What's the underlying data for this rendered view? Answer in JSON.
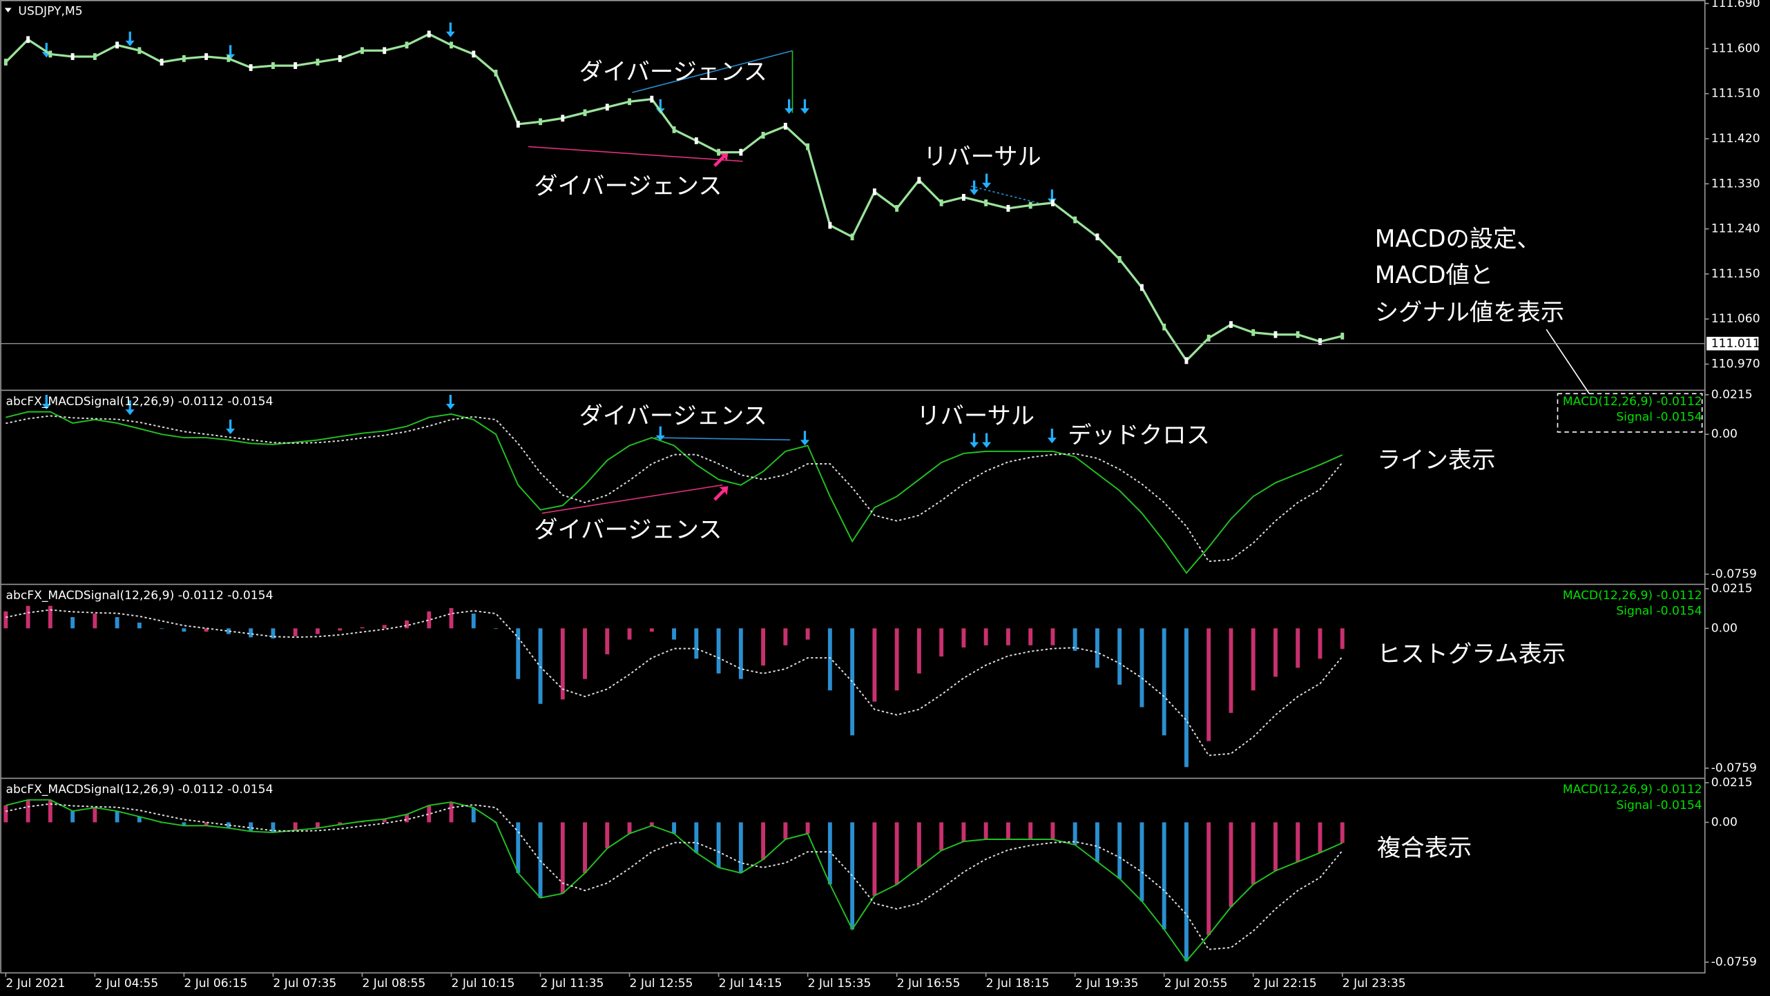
{
  "chart_data": [
    {
      "type": "line",
      "title": "USDJPY,M5",
      "color": "#9be39b",
      "x": [
        0,
        4,
        8,
        12,
        16,
        20,
        24,
        28,
        32,
        36,
        40,
        44,
        48,
        52,
        56,
        60,
        64,
        68,
        72,
        76,
        80,
        84,
        88,
        92,
        96,
        100,
        104,
        108,
        112,
        116,
        120,
        124,
        128,
        132,
        136,
        140,
        144,
        148,
        152,
        156,
        160,
        164,
        168,
        172,
        176,
        180,
        184,
        188,
        192,
        196,
        200,
        204,
        208,
        212,
        216,
        220,
        224,
        228,
        232,
        236,
        240
      ],
      "values": [
        111.573,
        111.618,
        111.589,
        111.584,
        111.584,
        111.607,
        111.596,
        111.573,
        111.58,
        111.584,
        111.58,
        111.562,
        111.566,
        111.566,
        111.573,
        111.58,
        111.596,
        111.596,
        111.607,
        111.629,
        111.607,
        111.589,
        111.551,
        111.449,
        111.454,
        111.461,
        111.472,
        111.483,
        111.494,
        111.499,
        111.438,
        111.416,
        111.393,
        111.393,
        111.427,
        111.445,
        111.404,
        111.247,
        111.224,
        111.314,
        111.281,
        111.337,
        111.292,
        111.303,
        111.292,
        111.281,
        111.287,
        111.292,
        111.258,
        111.224,
        111.179,
        111.123,
        111.044,
        110.977,
        111.022,
        111.049,
        111.033,
        111.029,
        111.029,
        111.015,
        111.026
      ],
      "xlim": [
        -1,
        305
      ],
      "ylim": [
        110.92,
        111.697
      ],
      "yticks": [
        {
          "value": 111.69,
          "label": "111.690"
        },
        {
          "value": 111.6,
          "label": "111.600"
        },
        {
          "value": 111.51,
          "label": "111.510"
        },
        {
          "value": 111.42,
          "label": "111.420"
        },
        {
          "value": 111.33,
          "label": "111.330"
        },
        {
          "value": 111.24,
          "label": "111.240"
        },
        {
          "value": 111.15,
          "label": "111.150"
        },
        {
          "value": 111.06,
          "label": "111.060"
        },
        {
          "value": 110.97,
          "label": "110.970"
        }
      ],
      "current_price": 111.011,
      "annotations": [
        "ダイバージェンス",
        "ダイバージェンス",
        "リバーサル",
        "MACDの設定、",
        "MACD値と",
        "シグナル値を表示"
      ]
    },
    {
      "type": "macd",
      "title": "abcFX_MACDSignal(12,26,9) -0.0112 -0.0154",
      "x": [
        0,
        4,
        8,
        12,
        16,
        20,
        24,
        28,
        32,
        36,
        40,
        44,
        48,
        52,
        56,
        60,
        64,
        68,
        72,
        76,
        80,
        84,
        88,
        92,
        96,
        100,
        104,
        108,
        112,
        116,
        120,
        124,
        128,
        132,
        136,
        140,
        144,
        148,
        152,
        156,
        160,
        164,
        168,
        172,
        176,
        180,
        184,
        188,
        192,
        196,
        200,
        204,
        208,
        212,
        216,
        220,
        224,
        228,
        232,
        236,
        240
      ],
      "series": [
        {
          "name": "MACD(12,26,9) -0.0112",
          "color": "#22c022",
          "legend_color": "#00e000",
          "values": [
            0.0092,
            0.0122,
            0.0122,
            0.0061,
            0.008,
            0.0061,
            0.0031,
            0,
            -0.0018,
            -0.0018,
            -0.0031,
            -0.0049,
            -0.0055,
            -0.0043,
            -0.0031,
            -0.0012,
            0.0006,
            0.0018,
            0.0043,
            0.0092,
            0.011,
            0.008,
            0,
            -0.0275,
            -0.041,
            -0.0386,
            -0.0275,
            -0.0141,
            -0.0061,
            -0.0018,
            -0.0061,
            -0.0165,
            -0.0245,
            -0.0275,
            -0.0202,
            -0.0092,
            -0.0061,
            -0.0337,
            -0.0581,
            -0.0398,
            -0.0337,
            -0.0245,
            -0.0153,
            -0.0104,
            -0.0092,
            -0.0092,
            -0.0092,
            -0.0092,
            -0.0122,
            -0.0214,
            -0.0306,
            -0.0428,
            -0.0581,
            -0.0753,
            -0.0612,
            -0.0459,
            -0.0337,
            -0.0263,
            -0.0214,
            -0.0165,
            -0.0112
          ]
        },
        {
          "name": "Signal -0.0154",
          "color": "#dddddd",
          "legend_color": "#00e000",
          "values": [
            0.006,
            0.0085,
            0.01,
            0.009,
            0.0085,
            0.0082,
            0.0065,
            0.004,
            0.0015,
            0,
            -0.0015,
            -0.003,
            -0.0045,
            -0.0048,
            -0.0045,
            -0.0035,
            -0.002,
            -0.0005,
            0.0015,
            0.0045,
            0.008,
            0.0095,
            0.008,
            -0.005,
            -0.021,
            -0.033,
            -0.037,
            -0.033,
            -0.025,
            -0.016,
            -0.011,
            -0.011,
            -0.016,
            -0.022,
            -0.0245,
            -0.022,
            -0.016,
            -0.016,
            -0.029,
            -0.044,
            -0.047,
            -0.044,
            -0.036,
            -0.027,
            -0.02,
            -0.015,
            -0.0125,
            -0.011,
            -0.0105,
            -0.013,
            -0.019,
            -0.027,
            -0.037,
            -0.05,
            -0.069,
            -0.068,
            -0.059,
            -0.047,
            -0.037,
            -0.03,
            -0.0154
          ]
        }
      ],
      "histogram_colors": {
        "falling": "#2a8fd0",
        "rising": "#c8306e"
      },
      "xlim": [
        -1,
        305
      ],
      "ylim": [
        -0.0808,
        0.0233
      ],
      "yticks": [
        0.0215,
        {
          "value": 0,
          "label": "0.00"
        },
        -0.0759
      ],
      "xticks": [
        {
          "value": 0,
          "label": "2 Jul 2021"
        },
        {
          "value": 16,
          "label": "2 Jul 04:55"
        },
        {
          "value": 32,
          "label": "2 Jul 06:15"
        },
        {
          "value": 48,
          "label": "2 Jul 07:35"
        },
        {
          "value": 64,
          "label": "2 Jul 08:55"
        },
        {
          "value": 80,
          "label": "2 Jul 10:15"
        },
        {
          "value": 96,
          "label": "2 Jul 11:35"
        },
        {
          "value": 112,
          "label": "2 Jul 12:55"
        },
        {
          "value": 128,
          "label": "2 Jul 14:15"
        },
        {
          "value": 144,
          "label": "2 Jul 15:35"
        },
        {
          "value": 160,
          "label": "2 Jul 16:55"
        },
        {
          "value": 176,
          "label": "2 Jul 18:15"
        },
        {
          "value": 192,
          "label": "2 Jul 19:35"
        },
        {
          "value": 208,
          "label": "2 Jul 20:55"
        },
        {
          "value": 224,
          "label": "2 Jul 22:15"
        },
        {
          "value": 240,
          "label": "2 Jul 23:35"
        }
      ],
      "panels": [
        {
          "display": "line",
          "label": "ライン表示"
        },
        {
          "display": "histogram",
          "label": "ヒストグラム表示"
        },
        {
          "display": "both",
          "label": "複合表示"
        }
      ],
      "annotations": [
        "ダイバージェンス",
        "ダイバージェンス",
        "リバーサル",
        "デッドクロス"
      ]
    }
  ]
}
